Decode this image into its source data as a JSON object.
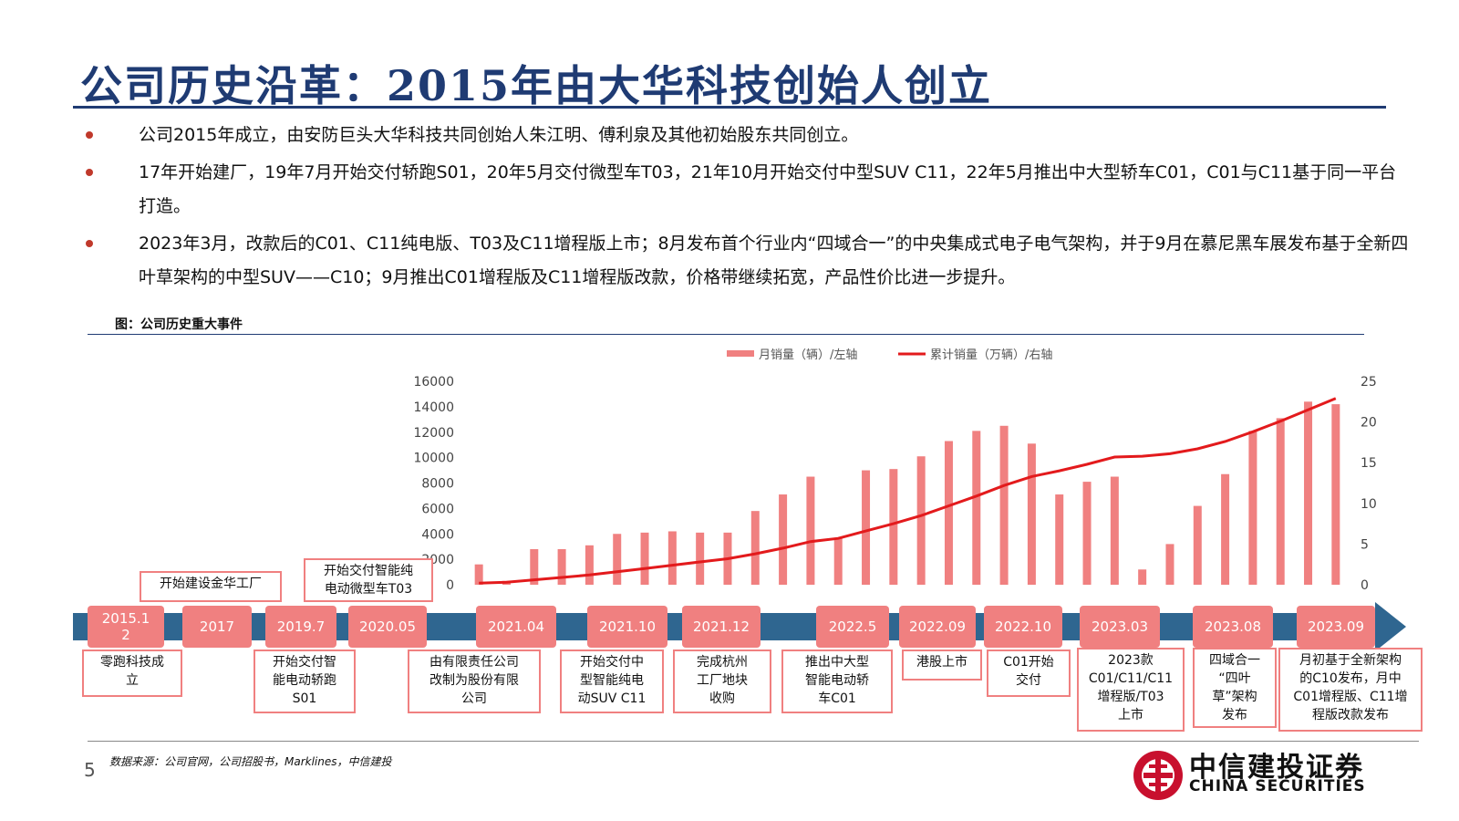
{
  "title": "公司历史沿革：2015年由大华科技创始人创立",
  "bullets": [
    "公司2015年成立，由安防巨头大华科技共同创始人朱江明、傅利泉及其他初始股东共同创立。",
    "17年开始建厂，19年7月开始交付轿跑S01，20年5月交付微型车T03，21年10月开始交付中型SUV C11，22年5月推出中大型轿车C01，C01与C11基于同一平台打造。",
    "2023年3月，改款后的C01、C11纯电版、T03及C11增程版上市；8月发布首个行业内“四域合一”的中央集成式电子电气架构，并于9月在慕尼黑车展发布基于全新四叶草架构的中型SUV——C10；9月推出C01增程版及C11增程版改款，价格带继续拓宽，产品性价比进一步提升。"
  ],
  "figure_label": "图：公司历史重大事件",
  "source": "数据来源：公司官网，公司招股书，Marklines，中信建投",
  "page_number": "5",
  "logo": {
    "cn": "中信建投证券",
    "en": "CHINA SECURITIES"
  },
  "colors": {
    "title": "#1f3b73",
    "bar": "#f08080",
    "line": "#e31a1c",
    "timeline": "#2f6690",
    "bullet": "#c0392b"
  },
  "chart_data": {
    "type": "bar+line",
    "legend": [
      "月销量（辆）/左轴",
      "累计销量（万辆）/右轴"
    ],
    "legend_position": "top",
    "y_left": {
      "min": 0,
      "max": 16000,
      "ticks": [
        0,
        2000,
        4000,
        6000,
        8000,
        10000,
        12000,
        14000,
        16000
      ]
    },
    "y_right": {
      "min": 0,
      "max": 25,
      "ticks": [
        0,
        5,
        10,
        15,
        20,
        25
      ]
    },
    "bars": [
      1600,
      300,
      2800,
      2800,
      3100,
      4000,
      4100,
      4200,
      4100,
      4100,
      5800,
      7100,
      8500,
      3700,
      9000,
      9100,
      10100,
      11300,
      12100,
      12500,
      11100,
      7100,
      8100,
      8500,
      1200,
      3200,
      6200,
      8700,
      12100,
      13100,
      14400,
      14200
    ],
    "cumulative": [
      0.2,
      0.3,
      0.6,
      0.9,
      1.2,
      1.6,
      2.0,
      2.4,
      2.8,
      3.2,
      3.8,
      4.5,
      5.3,
      5.7,
      6.6,
      7.5,
      8.5,
      9.7,
      10.9,
      12.2,
      13.3,
      14.0,
      14.8,
      15.7,
      15.8,
      16.1,
      16.7,
      17.6,
      18.8,
      20.1,
      21.5,
      22.9
    ]
  },
  "timeline": {
    "points": [
      {
        "label": "2015.1\n2",
        "event": "零跑科技成\n立",
        "pos": "below"
      },
      {
        "label": "2017",
        "event": "开始建设金华工厂",
        "pos": "above"
      },
      {
        "label": "2019.7",
        "event": "开始交付智\n能电动轿跑\nS01",
        "pos": "below"
      },
      {
        "label": "2020.05",
        "event": "开始交付智能纯\n电动微型车T03",
        "pos": "above"
      },
      {
        "label": "2021.04",
        "event": "由有限责任公司\n改制为股份有限\n公司",
        "pos": "below"
      },
      {
        "label": "2021.10",
        "event": "开始交付中\n型智能纯电\n动SUV C11",
        "pos": "below"
      },
      {
        "label": "2021.12",
        "event": "完成杭州\n工厂地块\n收购",
        "pos": "below"
      },
      {
        "label": "2022.5",
        "event": "推出中大型\n智能电动轿\n车C01",
        "pos": "below"
      },
      {
        "label": "2022.09",
        "event": "港股上市",
        "pos": "below"
      },
      {
        "label": "2022.10",
        "event": "C01开始\n交付",
        "pos": "below"
      },
      {
        "label": "2023.03",
        "event": "2023款\nC01/C11/C11\n增程版/T03\n上市",
        "pos": "below"
      },
      {
        "label": "2023.08",
        "event": "四域合一\n“四叶\n草”架构\n发布",
        "pos": "below"
      },
      {
        "label": "2023.09",
        "event": "月初基于全新架构\n的C10发布，月中\nC01增程版、C11增\n程版改款发布",
        "pos": "below"
      }
    ]
  }
}
